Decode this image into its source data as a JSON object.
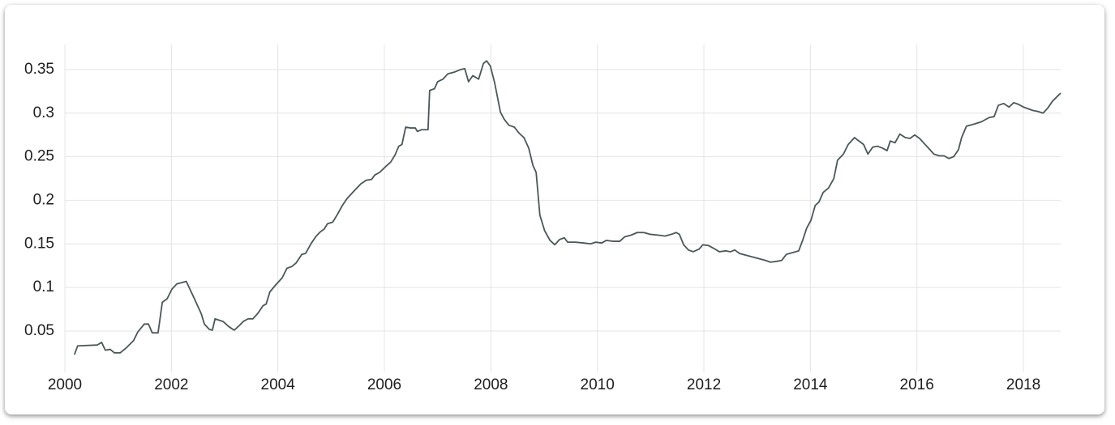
{
  "chart_data": {
    "type": "line",
    "color": "#4b5757",
    "grid": true,
    "xlim": [
      2000,
      2018.7
    ],
    "ylim": [
      0.005,
      0.375
    ],
    "xticks": [
      2000,
      2002,
      2004,
      2006,
      2008,
      2010,
      2012,
      2014,
      2016,
      2018
    ],
    "yticks": [
      0.05,
      0.1,
      0.15,
      0.2,
      0.25,
      0.3,
      0.35
    ],
    "x": [
      2000.18,
      2000.24,
      2000.61,
      2000.69,
      2000.76,
      2000.85,
      2000.93,
      2001.04,
      2001.14,
      2001.29,
      2001.37,
      2001.49,
      2001.57,
      2001.64,
      2001.75,
      2001.83,
      2001.92,
      2002.01,
      2002.1,
      2002.28,
      2002.44,
      2002.56,
      2002.62,
      2002.71,
      2002.77,
      2002.82,
      2002.97,
      2003.08,
      2003.18,
      2003.27,
      2003.35,
      2003.44,
      2003.53,
      2003.62,
      2003.72,
      2003.78,
      2003.85,
      2003.96,
      2004.08,
      2004.17,
      2004.26,
      2004.34,
      2004.45,
      2004.52,
      2004.63,
      2004.72,
      2004.8,
      2004.87,
      2004.93,
      2005.03,
      2005.12,
      2005.21,
      2005.3,
      2005.42,
      2005.56,
      2005.66,
      2005.76,
      2005.82,
      2005.91,
      2006.03,
      2006.12,
      2006.2,
      2006.27,
      2006.33,
      2006.4,
      2006.49,
      2006.58,
      2006.62,
      2006.7,
      2006.82,
      2006.85,
      2006.94,
      2007.0,
      2007.1,
      2007.19,
      2007.31,
      2007.43,
      2007.51,
      2007.58,
      2007.66,
      2007.77,
      2007.86,
      2007.92,
      2007.99,
      2008.07,
      2008.18,
      2008.25,
      2008.34,
      2008.44,
      2008.53,
      2008.62,
      2008.71,
      2008.79,
      2008.85,
      2008.92,
      2009.01,
      2009.11,
      2009.2,
      2009.29,
      2009.38,
      2009.44,
      2009.59,
      2009.75,
      2009.87,
      2009.97,
      2010.08,
      2010.17,
      2010.29,
      2010.42,
      2010.51,
      2010.63,
      2010.75,
      2010.87,
      2010.99,
      2011.15,
      2011.27,
      2011.39,
      2011.48,
      2011.54,
      2011.62,
      2011.71,
      2011.8,
      2011.91,
      2011.98,
      2012.09,
      2012.18,
      2012.29,
      2012.41,
      2012.5,
      2012.58,
      2012.67,
      2012.79,
      2012.91,
      2013.04,
      2013.16,
      2013.25,
      2013.37,
      2013.46,
      2013.55,
      2013.67,
      2013.78,
      2013.86,
      2013.93,
      2014.01,
      2014.09,
      2014.16,
      2014.24,
      2014.34,
      2014.44,
      2014.51,
      2014.62,
      2014.71,
      2014.83,
      2014.89,
      2015.0,
      2015.08,
      2015.17,
      2015.26,
      2015.35,
      2015.44,
      2015.5,
      2015.59,
      2015.68,
      2015.78,
      2015.87,
      2015.96,
      2016.05,
      2016.14,
      2016.23,
      2016.32,
      2016.42,
      2016.51,
      2016.6,
      2016.69,
      2016.78,
      2016.84,
      2016.93,
      2017.05,
      2017.21,
      2017.36,
      2017.45,
      2017.53,
      2017.63,
      2017.73,
      2017.82,
      2017.91,
      2018.0,
      2018.09,
      2018.18,
      2018.27,
      2018.37,
      2018.46,
      2018.55,
      2018.7
    ],
    "values": [
      0.023,
      0.033,
      0.034,
      0.037,
      0.028,
      0.029,
      0.025,
      0.025,
      0.03,
      0.039,
      0.049,
      0.058,
      0.058,
      0.048,
      0.048,
      0.083,
      0.087,
      0.098,
      0.104,
      0.107,
      0.086,
      0.07,
      0.058,
      0.052,
      0.051,
      0.064,
      0.061,
      0.055,
      0.051,
      0.056,
      0.061,
      0.064,
      0.064,
      0.07,
      0.079,
      0.081,
      0.095,
      0.103,
      0.111,
      0.122,
      0.124,
      0.128,
      0.138,
      0.139,
      0.151,
      0.159,
      0.164,
      0.167,
      0.173,
      0.175,
      0.184,
      0.194,
      0.202,
      0.21,
      0.219,
      0.223,
      0.224,
      0.229,
      0.232,
      0.239,
      0.244,
      0.252,
      0.262,
      0.264,
      0.284,
      0.283,
      0.283,
      0.279,
      0.281,
      0.281,
      0.326,
      0.328,
      0.336,
      0.339,
      0.345,
      0.347,
      0.35,
      0.351,
      0.336,
      0.343,
      0.339,
      0.357,
      0.36,
      0.354,
      0.335,
      0.301,
      0.293,
      0.286,
      0.284,
      0.277,
      0.272,
      0.26,
      0.24,
      0.232,
      0.183,
      0.165,
      0.154,
      0.149,
      0.155,
      0.157,
      0.152,
      0.152,
      0.151,
      0.15,
      0.152,
      0.151,
      0.154,
      0.153,
      0.153,
      0.158,
      0.16,
      0.163,
      0.163,
      0.161,
      0.16,
      0.159,
      0.161,
      0.163,
      0.161,
      0.149,
      0.143,
      0.141,
      0.144,
      0.149,
      0.148,
      0.145,
      0.141,
      0.142,
      0.141,
      0.143,
      0.139,
      0.137,
      0.135,
      0.133,
      0.131,
      0.129,
      0.13,
      0.131,
      0.138,
      0.14,
      0.142,
      0.155,
      0.168,
      0.177,
      0.194,
      0.198,
      0.209,
      0.214,
      0.225,
      0.246,
      0.253,
      0.264,
      0.272,
      0.269,
      0.264,
      0.253,
      0.261,
      0.262,
      0.26,
      0.257,
      0.268,
      0.266,
      0.276,
      0.272,
      0.271,
      0.275,
      0.271,
      0.265,
      0.259,
      0.253,
      0.251,
      0.251,
      0.248,
      0.25,
      0.258,
      0.272,
      0.285,
      0.287,
      0.29,
      0.295,
      0.296,
      0.309,
      0.311,
      0.307,
      0.312,
      0.31,
      0.307,
      0.305,
      0.303,
      0.302,
      0.3,
      0.306,
      0.314,
      0.323
    ]
  }
}
